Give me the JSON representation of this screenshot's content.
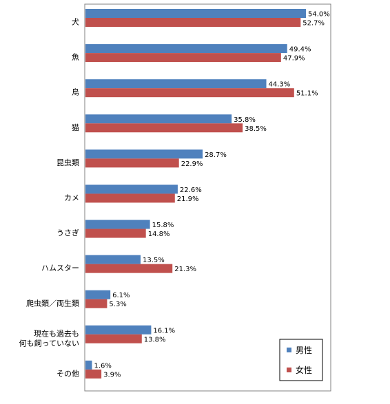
{
  "chart_data": {
    "type": "bar",
    "orientation": "horizontal",
    "categories": [
      [
        "犬"
      ],
      [
        "魚"
      ],
      [
        "鳥"
      ],
      [
        "猫"
      ],
      [
        "昆虫類"
      ],
      [
        "カメ"
      ],
      [
        "うさぎ"
      ],
      [
        "ハムスター"
      ],
      [
        "爬虫類／両生類"
      ],
      [
        "現在も過去も",
        "何も飼っていない"
      ],
      [
        "その他"
      ]
    ],
    "series": [
      {
        "name": "男性",
        "color": "#4f81bd",
        "values": [
          54.0,
          49.4,
          44.3,
          35.8,
          28.7,
          22.6,
          15.8,
          13.5,
          6.1,
          16.1,
          1.6
        ],
        "labels": [
          "54.0%",
          "49.4%",
          "44.3%",
          "35.8%",
          "28.7%",
          "22.6%",
          "15.8%",
          "13.5%",
          "6.1%",
          "16.1%",
          "1.6%"
        ]
      },
      {
        "name": "女性",
        "color": "#c0504d",
        "values": [
          52.7,
          47.9,
          51.1,
          38.5,
          22.9,
          21.9,
          14.8,
          21.3,
          5.3,
          13.8,
          3.9
        ],
        "labels": [
          "52.7%",
          "47.9%",
          "51.1%",
          "38.5%",
          "22.9%",
          "21.9%",
          "14.8%",
          "21.3%",
          "5.3%",
          "13.8%",
          "3.9%"
        ]
      }
    ],
    "xlim": [
      0,
      60
    ],
    "grid": false,
    "legend_position": "bottom-right"
  }
}
